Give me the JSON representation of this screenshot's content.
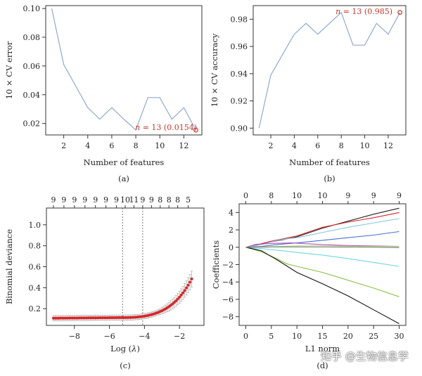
{
  "chart_data": [
    {
      "id": "a",
      "type": "line",
      "caption": "(a)",
      "xlabel": "Number of features",
      "ylabel": "10 × CV error",
      "xlim": [
        0.5,
        13.5
      ],
      "ylim": [
        0.012,
        0.102
      ],
      "xticks": [
        2,
        4,
        6,
        8,
        10,
        12
      ],
      "yticks": [
        0.02,
        0.04,
        0.06,
        0.08,
        0.1
      ],
      "ytick_labels": [
        "0.02",
        "0.04",
        "0.06",
        "0.08",
        "0.10"
      ],
      "x": [
        1,
        2,
        3,
        4,
        5,
        6,
        7,
        8,
        9,
        10,
        11,
        12,
        13
      ],
      "y": [
        0.1,
        0.061,
        0.046,
        0.031,
        0.023,
        0.031,
        0.023,
        0.0154,
        0.038,
        0.038,
        0.023,
        0.031,
        0.0154
      ],
      "marker": {
        "x": 13,
        "y": 0.0154
      },
      "annotation": {
        "italic": "n",
        "text": " = 13 (0.0154)"
      },
      "line_color": "#8fa9cf",
      "marker_color": "#c0392b"
    },
    {
      "id": "b",
      "type": "line",
      "caption": "(b)",
      "xlabel": "Number of features",
      "ylabel": "10 × CV accuracy",
      "xlim": [
        0.5,
        13.5
      ],
      "ylim": [
        0.895,
        0.99
      ],
      "xticks": [
        2,
        4,
        6,
        8,
        10,
        12
      ],
      "yticks": [
        0.9,
        0.92,
        0.94,
        0.96,
        0.98
      ],
      "ytick_labels": [
        "0.90",
        "0.92",
        "0.94",
        "0.96",
        "0.98"
      ],
      "x": [
        1,
        2,
        3,
        4,
        5,
        6,
        7,
        8,
        9,
        10,
        11,
        12,
        13
      ],
      "y": [
        0.9,
        0.939,
        0.954,
        0.969,
        0.977,
        0.969,
        0.977,
        0.985,
        0.961,
        0.961,
        0.977,
        0.969,
        0.985
      ],
      "marker": {
        "x": 13,
        "y": 0.985
      },
      "annotation": {
        "italic": "n",
        "text": " = 13 (0.985)"
      },
      "line_color": "#8fa9cf",
      "marker_color": "#c0392b"
    },
    {
      "id": "c",
      "type": "scatter",
      "caption": "(c)",
      "xlabel_prefix": "Log (",
      "xlabel_italic": "λ",
      "xlabel_suffix": ")",
      "ylabel": "Binomial deviance",
      "xlim": [
        -9.6,
        -0.6
      ],
      "ylim": [
        0.04,
        1.16
      ],
      "xticks": [
        -8,
        -6,
        -4,
        -2
      ],
      "xtick_labels": [
        "−8",
        "−6",
        "−4",
        "−2"
      ],
      "yticks": [
        0.2,
        0.4,
        0.6,
        0.8,
        1.0
      ],
      "ytick_labels": [
        "0.2",
        "0.4",
        "0.6",
        "0.8",
        "1.0"
      ],
      "top_axis_labels": [
        "9",
        "9",
        "9",
        "9",
        "9",
        "9",
        "9",
        "10",
        "11",
        "9",
        "9",
        "8",
        "8",
        "8",
        "5"
      ],
      "top_axis_x": [
        -9.2,
        -8.6,
        -8.0,
        -7.4,
        -6.8,
        -6.2,
        -5.6,
        -5.1,
        -4.6,
        -4.1,
        -3.6,
        -3.1,
        -2.6,
        -2.1,
        -1.5
      ],
      "vlines": [
        -5.25,
        -4.1
      ],
      "points": {
        "x_start": -9.2,
        "x_end": -1.3,
        "count": 80
      },
      "point_color": "#d62728",
      "error_color": "#aaaaaa"
    },
    {
      "id": "d",
      "type": "line",
      "caption": "(d)",
      "xlabel": "L1 norm",
      "ylabel": "Coefficients",
      "xlim": [
        -1.3,
        31.3
      ],
      "ylim": [
        -9.0,
        5.0
      ],
      "xticks": [
        0,
        5,
        10,
        15,
        20,
        25,
        30
      ],
      "xtick_labels": [
        "0",
        "5",
        "10",
        "15",
        "20",
        "25",
        "30"
      ],
      "yticks": [
        4,
        2,
        0,
        -2,
        -4,
        -6,
        -8
      ],
      "ytick_labels": [
        "4",
        "2",
        "0",
        "−2",
        "−4",
        "−6",
        "−8"
      ],
      "top_axis_labels": [
        "0",
        "8",
        "10",
        "10",
        "9",
        "9",
        "9"
      ],
      "top_axis_x": [
        0,
        5,
        10,
        15,
        20,
        25,
        30
      ],
      "series": [
        {
          "color": "#222222",
          "x": [
            0,
            2,
            5,
            10,
            15,
            20,
            25,
            30
          ],
          "y": [
            0,
            0.2,
            0.6,
            1.2,
            2.2,
            3.0,
            3.8,
            4.5
          ]
        },
        {
          "color": "#d62728",
          "x": [
            0,
            2,
            5,
            10,
            15,
            20,
            25,
            30
          ],
          "y": [
            0,
            0.25,
            0.7,
            1.3,
            2.3,
            2.9,
            3.4,
            4.0
          ]
        },
        {
          "color": "#88c9e8",
          "x": [
            0,
            3,
            7,
            10,
            15,
            20,
            25,
            30
          ],
          "y": [
            0,
            0.3,
            0.9,
            1.1,
            1.7,
            2.3,
            2.8,
            3.3
          ]
        },
        {
          "color": "#4a6fd1",
          "x": [
            0,
            3,
            6,
            10,
            15,
            20,
            25,
            30
          ],
          "y": [
            0,
            0.1,
            0.3,
            0.5,
            0.8,
            1.1,
            1.4,
            1.8
          ]
        },
        {
          "color": "#c050c0",
          "x": [
            0,
            2,
            6,
            9,
            12,
            15,
            20,
            25,
            30
          ],
          "y": [
            0,
            0.35,
            0.45,
            0.5,
            0.4,
            0.3,
            0.2,
            0.15,
            0.1
          ]
        },
        {
          "color": "#9ed36a",
          "x": [
            0,
            3,
            7,
            10,
            15,
            20,
            25,
            30
          ],
          "y": [
            0,
            0.05,
            0.1,
            0.15,
            0.15,
            0.12,
            0.1,
            0.08
          ]
        },
        {
          "color": "#6fd7dd",
          "x": [
            0,
            3,
            7,
            10,
            15,
            20,
            25,
            30
          ],
          "y": [
            0,
            -0.15,
            -0.4,
            -0.6,
            -0.9,
            -1.3,
            -1.75,
            -2.2
          ]
        },
        {
          "color": "#8cc04a",
          "x": [
            0,
            3,
            6,
            8,
            10,
            15,
            20,
            25,
            30
          ],
          "y": [
            0,
            -0.5,
            -1.3,
            -1.9,
            -2.2,
            -2.9,
            -3.8,
            -4.7,
            -5.7
          ]
        },
        {
          "color": "#111111",
          "x": [
            0,
            3,
            6,
            10,
            15,
            20,
            25,
            30
          ],
          "y": [
            0,
            -0.4,
            -1.4,
            -2.9,
            -4.2,
            -5.6,
            -7.2,
            -8.8
          ]
        },
        {
          "color": "#888888",
          "x": [
            0,
            5,
            10,
            15,
            20,
            25,
            30
          ],
          "y": [
            0,
            0.02,
            0.03,
            0.02,
            0.01,
            0.0,
            -0.05
          ]
        }
      ]
    }
  ],
  "watermark": "知乎 @生物信息学"
}
